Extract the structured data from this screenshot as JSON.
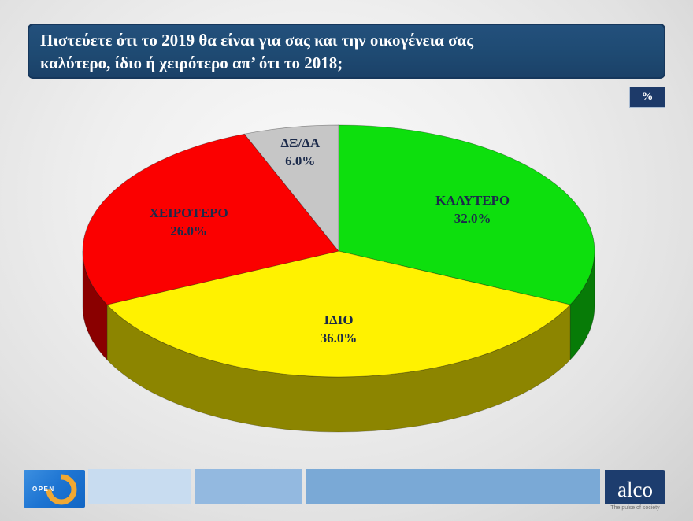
{
  "title": {
    "line1": "Πιστεύετε ότι το 2019 θα είναι για σας και την οικογένεια σας",
    "line2": "καλύτερο, ίδιο ή χειρότερο απ’ ότι το 2018;"
  },
  "percent_badge": "%",
  "chart_data": {
    "type": "pie",
    "style": "3d",
    "unit": "%",
    "start_angle_deg": 0,
    "direction": "clockwise",
    "categories": [
      "ΚΑΛΥΤΕΡΟ",
      "ΙΔΙΟ",
      "ΧΕΙΡΟΤΕΡΟ",
      "ΔΞ/ΔΑ"
    ],
    "values": [
      32.0,
      36.0,
      26.0,
      6.0
    ],
    "value_labels": [
      "32.0%",
      "36.0%",
      "26.0%",
      "6.0%"
    ],
    "colors": [
      "#0ddf0d",
      "#fff200",
      "#fb0000",
      "#c6c6c6"
    ],
    "label_color": "#1b2a4a",
    "label_radius": [
      0.62,
      0.62,
      0.63,
      0.8
    ],
    "legend": "none"
  },
  "footer": {
    "open_logo": {
      "text": "OPEN",
      "bg": "#1d74d2",
      "arc_color": "#f0a833"
    },
    "bars": [
      {
        "color": "#c8dcf0"
      },
      {
        "color": "#93b9e0"
      },
      {
        "color": "#7aa9d6"
      }
    ],
    "alco_logo": {
      "text": "alco",
      "tagline": "The pulse of society",
      "bg": "#1d3d6e"
    }
  }
}
